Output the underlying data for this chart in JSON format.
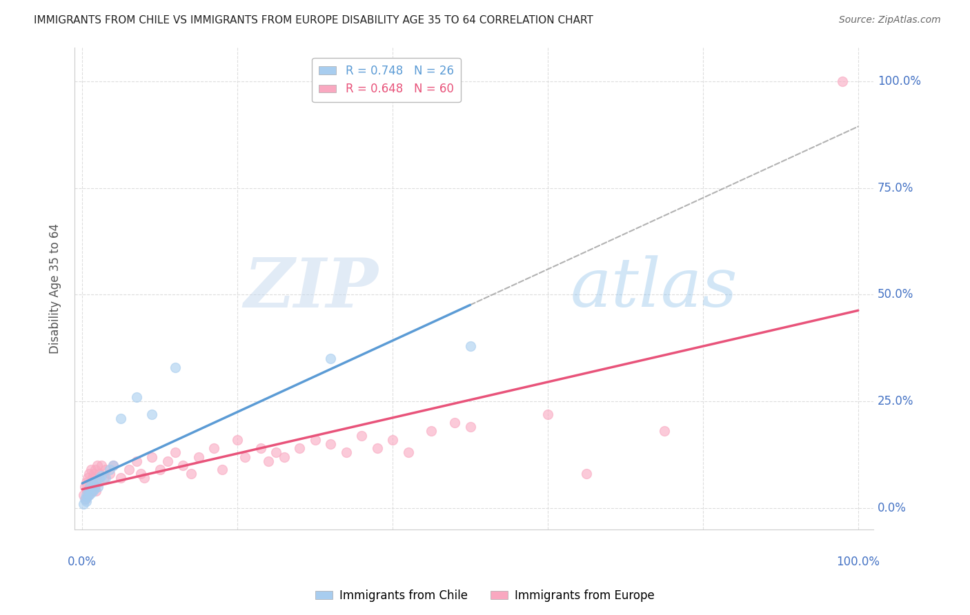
{
  "title": "IMMIGRANTS FROM CHILE VS IMMIGRANTS FROM EUROPE DISABILITY AGE 35 TO 64 CORRELATION CHART",
  "source": "Source: ZipAtlas.com",
  "ylabel": "Disability Age 35 to 64",
  "legend_chile": "R = 0.748   N = 26",
  "legend_europe": "R = 0.648   N = 60",
  "legend_label_chile": "Immigrants from Chile",
  "legend_label_europe": "Immigrants from Europe",
  "chile_color": "#A8CDEF",
  "europe_color": "#F9A8C0",
  "chile_line_color": "#5B9BD5",
  "europe_line_color": "#E8537A",
  "dashed_line_color": "#AAAAAA",
  "ytick_labels": [
    "0.0%",
    "25.0%",
    "50.0%",
    "75.0%",
    "100.0%"
  ],
  "ytick_vals": [
    0,
    25,
    50,
    75,
    100
  ],
  "xtick_vals": [
    0,
    20,
    40,
    60,
    80,
    100
  ],
  "chile_x": [
    0.2,
    0.3,
    0.5,
    0.5,
    0.6,
    0.8,
    0.9,
    1.0,
    1.1,
    1.2,
    1.4,
    1.5,
    1.6,
    1.8,
    2.0,
    2.2,
    2.5,
    3.0,
    3.5,
    4.0,
    5.0,
    7.0,
    9.0,
    12.0,
    32.0,
    50.0
  ],
  "chile_y": [
    1.0,
    2.0,
    1.5,
    3.0,
    2.5,
    4.0,
    3.0,
    5.0,
    3.5,
    6.0,
    4.0,
    5.5,
    4.5,
    6.0,
    5.0,
    7.0,
    7.5,
    7.0,
    9.0,
    10.0,
    21.0,
    26.0,
    22.0,
    33.0,
    35.0,
    38.0
  ],
  "europe_x": [
    0.2,
    0.3,
    0.4,
    0.5,
    0.6,
    0.7,
    0.8,
    0.9,
    1.0,
    1.1,
    1.2,
    1.3,
    1.4,
    1.5,
    1.6,
    1.7,
    1.8,
    1.9,
    2.0,
    2.2,
    2.5,
    2.8,
    3.0,
    3.5,
    4.0,
    5.0,
    6.0,
    7.0,
    7.5,
    8.0,
    9.0,
    10.0,
    11.0,
    12.0,
    13.0,
    14.0,
    15.0,
    17.0,
    18.0,
    20.0,
    21.0,
    23.0,
    24.0,
    25.0,
    26.0,
    28.0,
    30.0,
    32.0,
    34.0,
    36.0,
    38.0,
    40.0,
    42.0,
    45.0,
    48.0,
    50.0,
    60.0,
    65.0,
    75.0,
    98.0
  ],
  "europe_y": [
    3.0,
    5.0,
    2.0,
    6.0,
    4.0,
    7.0,
    3.0,
    8.0,
    5.0,
    9.0,
    4.0,
    7.0,
    6.0,
    8.0,
    5.0,
    9.0,
    4.0,
    10.0,
    6.0,
    8.0,
    10.0,
    7.0,
    9.0,
    8.0,
    10.0,
    7.0,
    9.0,
    11.0,
    8.0,
    7.0,
    12.0,
    9.0,
    11.0,
    13.0,
    10.0,
    8.0,
    12.0,
    14.0,
    9.0,
    16.0,
    12.0,
    14.0,
    11.0,
    13.0,
    12.0,
    14.0,
    16.0,
    15.0,
    13.0,
    17.0,
    14.0,
    16.0,
    13.0,
    18.0,
    20.0,
    19.0,
    22.0,
    8.0,
    18.0,
    100.0
  ],
  "watermark_zip": "ZIP",
  "watermark_atlas": "atlas",
  "background_color": "#FFFFFF",
  "grid_color": "#DDDDDD",
  "title_color": "#222222",
  "tick_label_color": "#4472C4"
}
